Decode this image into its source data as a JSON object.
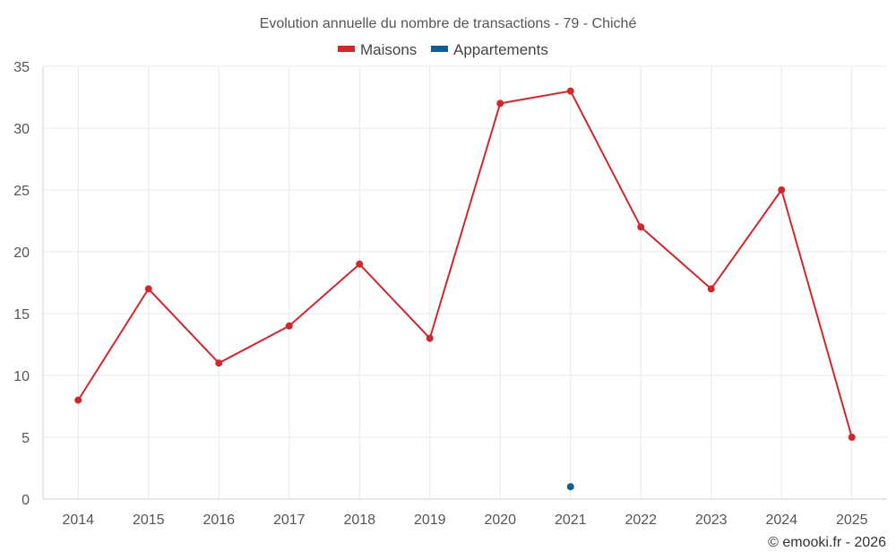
{
  "chart_data": {
    "type": "line",
    "title": "Evolution annuelle du nombre de transactions - 79 - Chiché",
    "categories": [
      "2014",
      "2015",
      "2016",
      "2017",
      "2018",
      "2019",
      "2020",
      "2021",
      "2022",
      "2023",
      "2024",
      "2025"
    ],
    "series": [
      {
        "name": "Maisons",
        "color": "#d0272d",
        "values": [
          8,
          17,
          11,
          14,
          19,
          13,
          32,
          33,
          22,
          17,
          25,
          5
        ]
      },
      {
        "name": "Appartements",
        "color": "#0f5f95",
        "values": [
          null,
          null,
          null,
          null,
          null,
          null,
          null,
          1,
          null,
          null,
          null,
          null
        ]
      }
    ],
    "ylim": [
      0,
      35
    ],
    "yticks": [
      "0",
      "5",
      "10",
      "15",
      "20",
      "25",
      "30",
      "35"
    ],
    "xlabel": "",
    "ylabel": "",
    "grid": true,
    "legend_position": "top-center"
  },
  "credit": "© emooki.fr - 2026"
}
